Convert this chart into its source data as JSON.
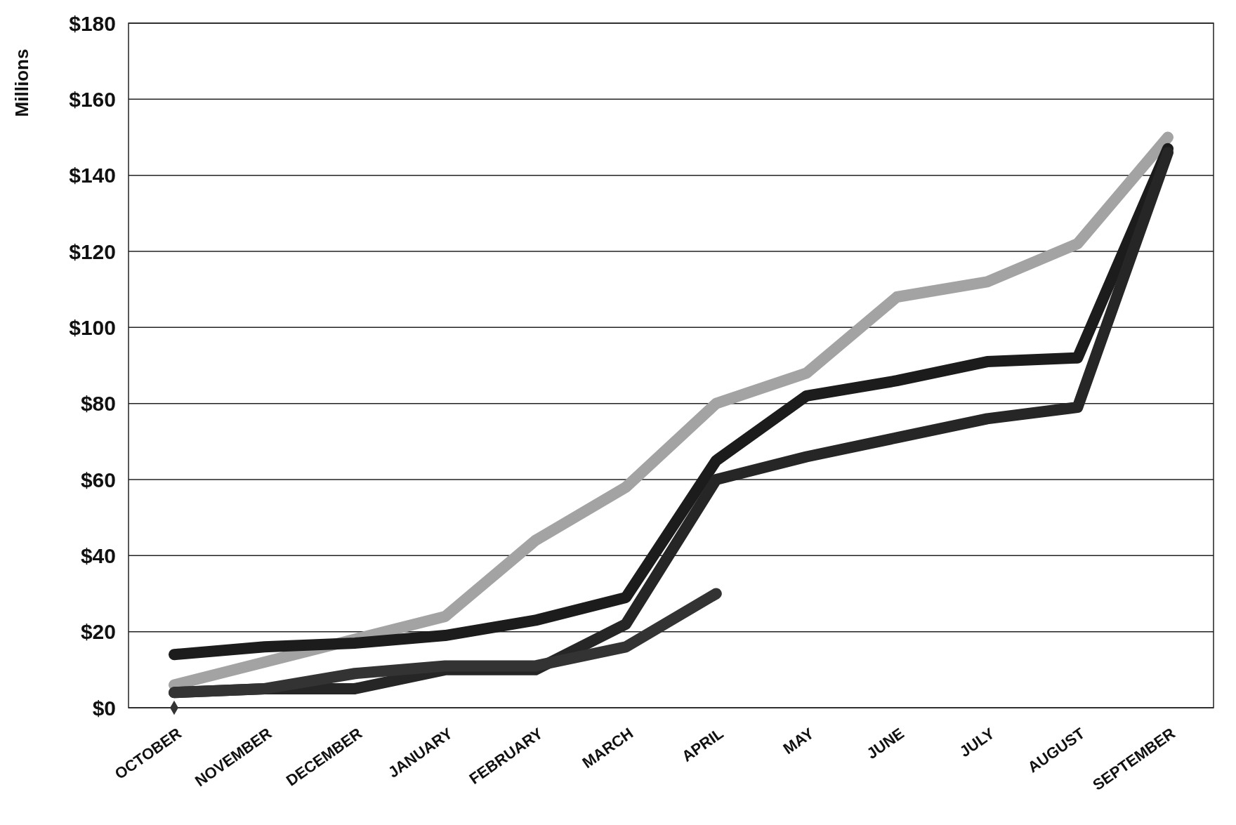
{
  "chart_data": {
    "type": "line",
    "ylabel": "Millions",
    "categories": [
      "OCTOBER",
      "NOVEMBER",
      "DECEMBER",
      "JANUARY",
      "FEBRUARY",
      "MARCH",
      "APRIL",
      "MAY",
      "JUNE",
      "JULY",
      "AUGUST",
      "SEPTEMBER"
    ],
    "series": [
      {
        "color": "#a3a3a3",
        "values": [
          6,
          12,
          18,
          24,
          44,
          58,
          80,
          88,
          108,
          112,
          122,
          150
        ]
      },
      {
        "color": "#1c1c1c",
        "values": [
          14,
          16,
          17,
          19,
          23,
          29,
          65,
          82,
          86,
          91,
          92,
          147
        ]
      },
      {
        "color": "#262626",
        "values": [
          4,
          5,
          5,
          10,
          10,
          22,
          60,
          66,
          71,
          76,
          79,
          146
        ]
      },
      {
        "color": "#333333",
        "values": [
          4,
          5,
          9,
          11,
          11,
          16,
          30,
          null,
          null,
          null,
          null,
          null
        ]
      },
      {
        "color": "#333333",
        "type": "scatter",
        "marker": "diamond",
        "values": [
          0,
          null,
          null,
          null,
          null,
          null,
          null,
          null,
          null,
          null,
          null,
          null
        ]
      }
    ],
    "ylim": [
      0,
      180
    ],
    "yticks": [
      {
        "value": 0,
        "label": "$0"
      },
      {
        "value": 20,
        "label": "$20"
      },
      {
        "value": 40,
        "label": "$40"
      },
      {
        "value": 60,
        "label": "$60"
      },
      {
        "value": 80,
        "label": "$80"
      },
      {
        "value": 100,
        "label": "$100"
      },
      {
        "value": 120,
        "label": "$120"
      },
      {
        "value": 140,
        "label": "$140"
      },
      {
        "value": 160,
        "label": "$160"
      },
      {
        "value": 180,
        "label": "$180"
      }
    ],
    "grid": "y",
    "line_style": "solid"
  }
}
